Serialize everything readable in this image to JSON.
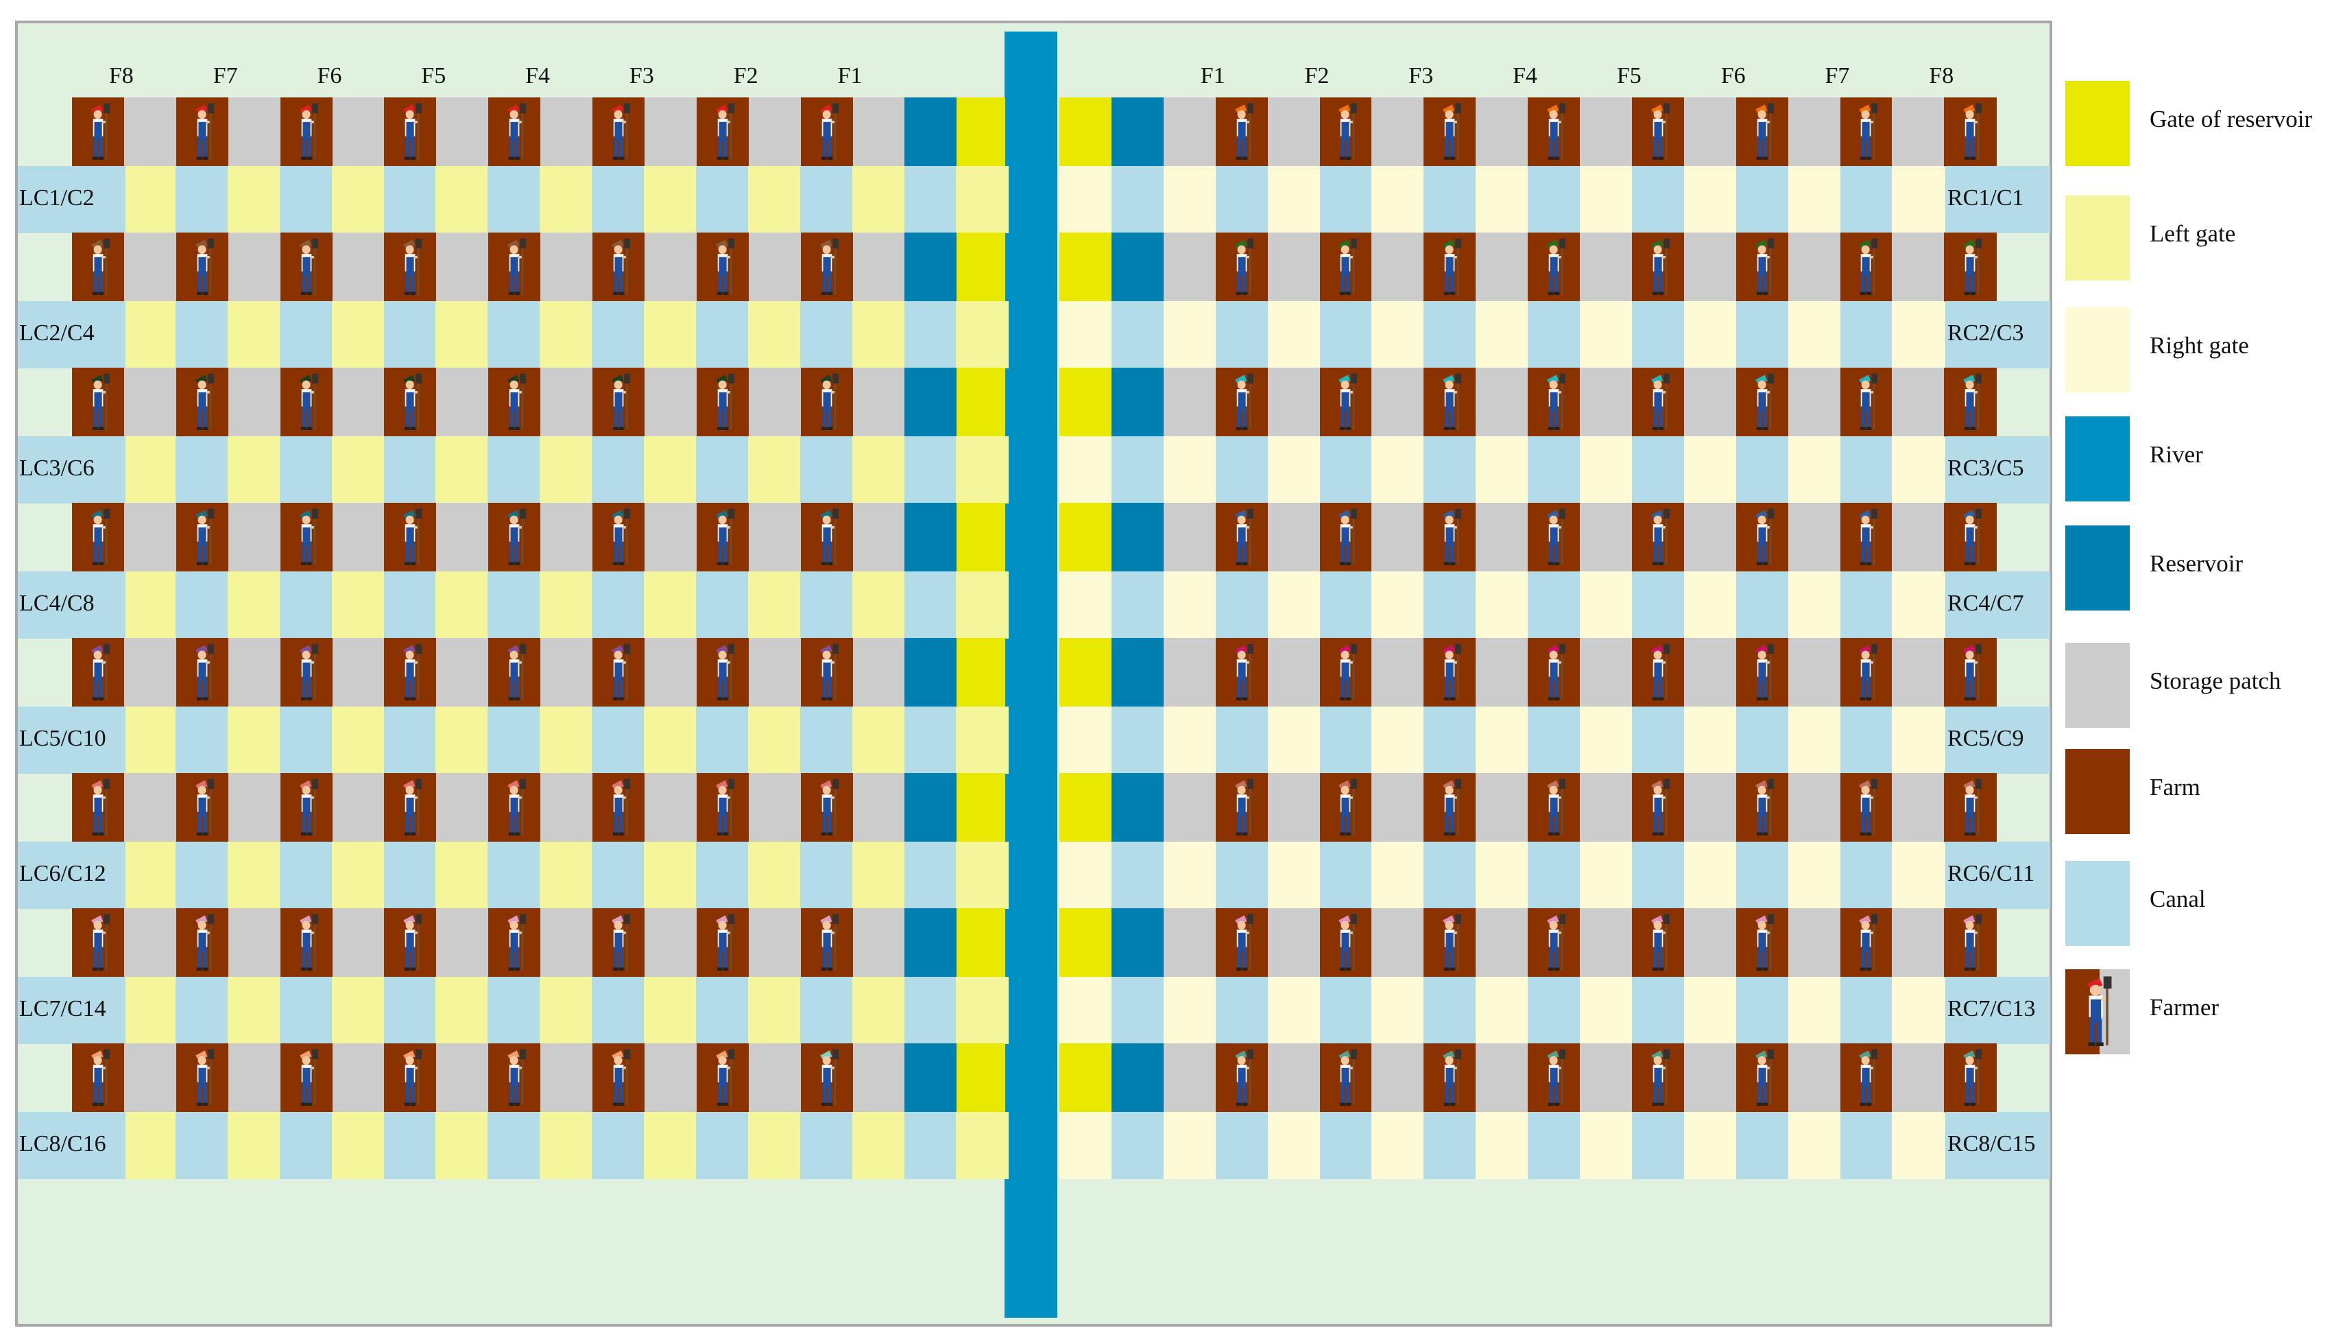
{
  "colors": {
    "board": "#e0f1e0",
    "gate_of_reservoir": "#e8e800",
    "left_gate": "#f5f59c",
    "right_gate": "#fdfbd6",
    "river": "#0090c4",
    "reservoir": "#0080b0",
    "storage_patch": "#cccccc",
    "farm": "#8b3300",
    "canal": "#b4dbe8"
  },
  "left_farm_labels": [
    "F8",
    "F7",
    "F6",
    "F5",
    "F4",
    "F3",
    "F2",
    "F1"
  ],
  "right_farm_labels": [
    "F1",
    "F2",
    "F3",
    "F4",
    "F5",
    "F6",
    "F7",
    "F8"
  ],
  "left_canal_labels": [
    "LC1/C2",
    "LC2/C4",
    "LC3/C6",
    "LC4/C8",
    "LC5/C10",
    "LC6/C12",
    "LC7/C14",
    "LC8/C16"
  ],
  "right_canal_labels": [
    "RC1/C1",
    "RC2/C3",
    "RC3/C5",
    "RC4/C7",
    "RC5/C9",
    "RC6/C11",
    "RC7/C13",
    "RC8/C15"
  ],
  "left_farmer_colors": [
    "#e02020",
    "#8a5a3a",
    "#1a4020",
    "#1a7080",
    "#8050a0",
    "#e07070",
    "#d8a0c0",
    "#f0a070"
  ],
  "left_farmer_f1_last_color": "#80d0c0",
  "right_farmer_colors": [
    "#f07010",
    "#207020",
    "#20b8c0",
    "#3060a0",
    "#d01070",
    "#c07060",
    "#e090c0",
    "#50a090"
  ],
  "legend": [
    {
      "icon": "gate-of-reservoir",
      "label": "Gate of reservoir",
      "color": "#e8e800"
    },
    {
      "icon": "left-gate",
      "label": "Left gate",
      "color": "#f5f59c"
    },
    {
      "icon": "right-gate",
      "label": "Right gate",
      "color": "#fdfbd6"
    },
    {
      "icon": "river",
      "label": "River",
      "color": "#0090c4"
    },
    {
      "icon": "reservoir",
      "label": "Reservoir",
      "color": "#0080b0"
    },
    {
      "icon": "storage-patch",
      "label": "Storage patch",
      "color": "#cccccc"
    },
    {
      "icon": "farm",
      "label": "Farm",
      "color": "#8b3300"
    },
    {
      "icon": "canal",
      "label": "Canal",
      "color": "#b4dbe8"
    },
    {
      "icon": "farmer",
      "label": "Farmer",
      "color": "#8b3300"
    }
  ]
}
